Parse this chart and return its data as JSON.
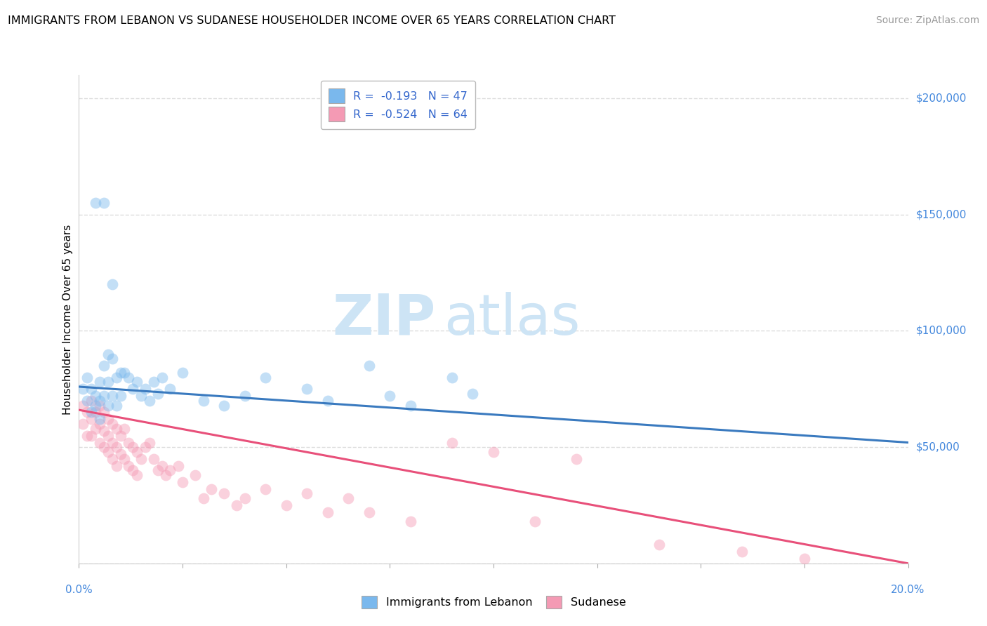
{
  "title": "IMMIGRANTS FROM LEBANON VS SUDANESE HOUSEHOLDER INCOME OVER 65 YEARS CORRELATION CHART",
  "source": "Source: ZipAtlas.com",
  "ylabel": "Householder Income Over 65 years",
  "xlim": [
    0.0,
    0.2
  ],
  "ylim": [
    0,
    210000
  ],
  "yticks": [
    0,
    50000,
    100000,
    150000,
    200000
  ],
  "ytick_labels": [
    "",
    "$50,000",
    "$100,000",
    "$150,000",
    "$200,000"
  ],
  "legend_r1": "R =  -0.193   N = 47",
  "legend_r2": "R =  -0.524   N = 64",
  "lebanon_scatter_x": [
    0.001,
    0.002,
    0.002,
    0.003,
    0.003,
    0.004,
    0.004,
    0.005,
    0.005,
    0.005,
    0.006,
    0.006,
    0.007,
    0.007,
    0.007,
    0.008,
    0.008,
    0.009,
    0.009,
    0.01,
    0.01,
    0.011,
    0.012,
    0.013,
    0.014,
    0.015,
    0.016,
    0.017,
    0.018,
    0.019,
    0.02,
    0.022,
    0.025,
    0.03,
    0.035,
    0.04,
    0.045,
    0.055,
    0.06,
    0.07,
    0.075,
    0.08,
    0.09,
    0.095,
    0.004,
    0.006,
    0.008
  ],
  "lebanon_scatter_y": [
    75000,
    80000,
    70000,
    75000,
    65000,
    72000,
    68000,
    78000,
    70000,
    62000,
    85000,
    72000,
    90000,
    78000,
    68000,
    88000,
    72000,
    80000,
    68000,
    82000,
    72000,
    82000,
    80000,
    75000,
    78000,
    72000,
    75000,
    70000,
    78000,
    73000,
    80000,
    75000,
    82000,
    70000,
    68000,
    72000,
    80000,
    75000,
    70000,
    85000,
    72000,
    68000,
    80000,
    73000,
    155000,
    155000,
    120000
  ],
  "sudanese_scatter_x": [
    0.001,
    0.001,
    0.002,
    0.002,
    0.003,
    0.003,
    0.003,
    0.004,
    0.004,
    0.005,
    0.005,
    0.005,
    0.006,
    0.006,
    0.006,
    0.007,
    0.007,
    0.007,
    0.008,
    0.008,
    0.008,
    0.009,
    0.009,
    0.009,
    0.01,
    0.01,
    0.011,
    0.011,
    0.012,
    0.012,
    0.013,
    0.013,
    0.014,
    0.014,
    0.015,
    0.016,
    0.017,
    0.018,
    0.019,
    0.02,
    0.021,
    0.022,
    0.024,
    0.025,
    0.028,
    0.03,
    0.032,
    0.035,
    0.038,
    0.04,
    0.045,
    0.05,
    0.055,
    0.06,
    0.065,
    0.07,
    0.08,
    0.09,
    0.1,
    0.11,
    0.12,
    0.14,
    0.16,
    0.175
  ],
  "sudanese_scatter_y": [
    68000,
    60000,
    65000,
    55000,
    70000,
    62000,
    55000,
    65000,
    58000,
    68000,
    60000,
    52000,
    65000,
    57000,
    50000,
    62000,
    55000,
    48000,
    60000,
    52000,
    45000,
    58000,
    50000,
    42000,
    55000,
    47000,
    58000,
    45000,
    52000,
    42000,
    50000,
    40000,
    48000,
    38000,
    45000,
    50000,
    52000,
    45000,
    40000,
    42000,
    38000,
    40000,
    42000,
    35000,
    38000,
    28000,
    32000,
    30000,
    25000,
    28000,
    32000,
    25000,
    30000,
    22000,
    28000,
    22000,
    18000,
    52000,
    48000,
    18000,
    45000,
    8000,
    5000,
    2000
  ],
  "lebanon_line_x": [
    0.0,
    0.2
  ],
  "lebanon_line_y": [
    76000,
    52000
  ],
  "sudanese_line_x": [
    0.0,
    0.2
  ],
  "sudanese_line_y": [
    66000,
    0
  ],
  "lebanon_color": "#7ab8ed",
  "sudanese_color": "#f49ab4",
  "lebanon_line_color": "#3a7abf",
  "sudanese_line_color": "#e8507a",
  "background_color": "#ffffff",
  "grid_color": "#dddddd",
  "watermark_zip": "ZIP",
  "watermark_atlas": "atlas",
  "watermark_color": "#cde4f5",
  "title_fontsize": 11.5,
  "source_fontsize": 10,
  "ylabel_fontsize": 11,
  "scatter_alpha": 0.45,
  "scatter_size": 130
}
